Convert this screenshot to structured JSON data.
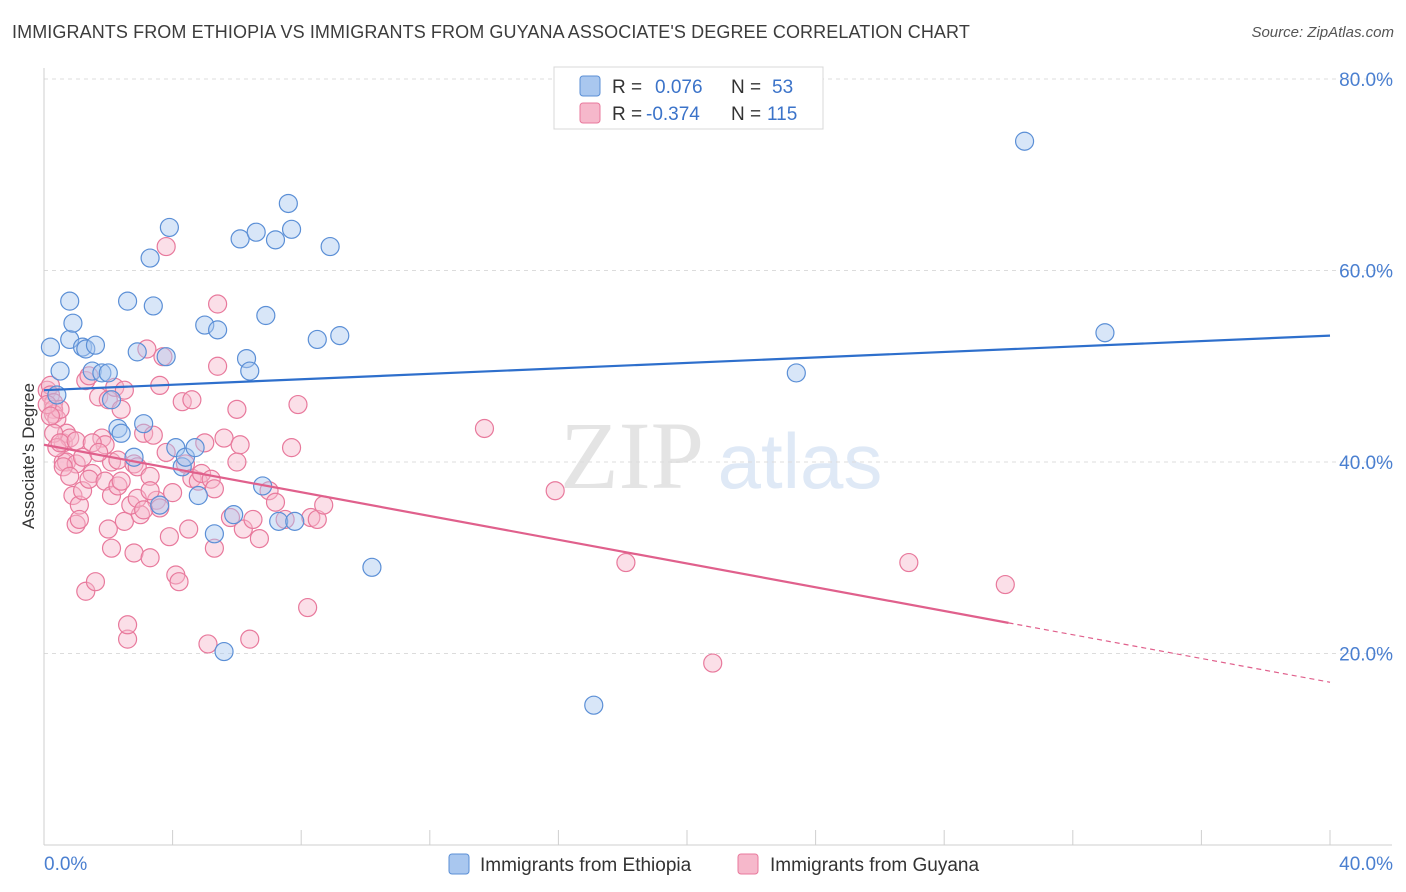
{
  "title": "IMMIGRANTS FROM ETHIOPIA VS IMMIGRANTS FROM GUYANA ASSOCIATE'S DEGREE CORRELATION CHART",
  "source": "Source: ZipAtlas.com",
  "watermark": {
    "zip": "ZIP",
    "atlas": "atlas"
  },
  "colors": {
    "ethiopia_fill": "#a9c7ef",
    "ethiopia_stroke": "#5b8fd6",
    "ethiopia_line": "#2e6fcc",
    "guyana_fill": "#f6b8cb",
    "guyana_stroke": "#e8799c",
    "guyana_line": "#e0608c",
    "axis_text": "#4a7fd0"
  },
  "legend": {
    "rows": [
      {
        "r_label": "R =",
        "r_value": "0.076",
        "n_label": "N =",
        "n_value": "53"
      },
      {
        "r_label": "R =",
        "r_value": "-0.374",
        "n_label": "N =",
        "n_value": "115"
      }
    ]
  },
  "chart_data": {
    "type": "scatter",
    "title": "IMMIGRANTS FROM ETHIOPIA VS IMMIGRANTS FROM GUYANA ASSOCIATE'S DEGREE CORRELATION CHART",
    "xlabel": "",
    "ylabel": "Associate's Degree",
    "xlim": [
      0,
      40
    ],
    "ylim": [
      0,
      80
    ],
    "x_tick_labels": [
      "0.0%",
      "40.0%"
    ],
    "y_ticks": [
      20,
      40,
      60,
      80
    ],
    "y_tick_labels": [
      "20.0%",
      "40.0%",
      "60.0%",
      "80.0%"
    ],
    "grid": true,
    "legend_position": "top-center",
    "series": [
      {
        "name": "Immigrants from Ethiopia",
        "trend": {
          "x": [
            0,
            40
          ],
          "y": [
            47.5,
            53.2
          ],
          "dashed_from": null
        },
        "points": [
          [
            0.2,
            52
          ],
          [
            0.5,
            49.5
          ],
          [
            0.4,
            47
          ],
          [
            0.8,
            52.8
          ],
          [
            0.8,
            56.8
          ],
          [
            0.9,
            54.5
          ],
          [
            1.2,
            52
          ],
          [
            1.3,
            51.8
          ],
          [
            1.5,
            49.5
          ],
          [
            1.6,
            52.2
          ],
          [
            1.8,
            49.3
          ],
          [
            2.0,
            49.3
          ],
          [
            2.1,
            46.5
          ],
          [
            2.3,
            43.5
          ],
          [
            2.4,
            43
          ],
          [
            2.6,
            56.8
          ],
          [
            2.8,
            40.5
          ],
          [
            2.9,
            51.5
          ],
          [
            3.1,
            44
          ],
          [
            3.3,
            61.3
          ],
          [
            3.4,
            56.3
          ],
          [
            3.6,
            35.5
          ],
          [
            3.8,
            51
          ],
          [
            3.9,
            64.5
          ],
          [
            4.1,
            41.5
          ],
          [
            4.3,
            39.5
          ],
          [
            4.4,
            40.5
          ],
          [
            4.7,
            41.5
          ],
          [
            4.8,
            36.5
          ],
          [
            5.0,
            54.3
          ],
          [
            5.3,
            32.5
          ],
          [
            5.4,
            53.8
          ],
          [
            5.6,
            20.2
          ],
          [
            5.9,
            34.5
          ],
          [
            6.1,
            63.3
          ],
          [
            6.3,
            50.8
          ],
          [
            6.4,
            49.5
          ],
          [
            6.6,
            64
          ],
          [
            6.8,
            37.5
          ],
          [
            6.9,
            55.3
          ],
          [
            7.2,
            63.2
          ],
          [
            7.3,
            33.8
          ],
          [
            7.6,
            67
          ],
          [
            7.7,
            64.3
          ],
          [
            7.8,
            33.8
          ],
          [
            8.5,
            52.8
          ],
          [
            8.9,
            62.5
          ],
          [
            9.2,
            53.2
          ],
          [
            10.2,
            29
          ],
          [
            17.1,
            14.6
          ],
          [
            23.4,
            49.3
          ],
          [
            30.5,
            73.5
          ],
          [
            33.0,
            53.5
          ]
        ]
      },
      {
        "name": "Immigrants from Guyana",
        "trend": {
          "x": [
            0,
            40
          ],
          "y": [
            41.8,
            17.0
          ],
          "dashed_from": 30.0
        },
        "points": [
          [
            0.1,
            47.5
          ],
          [
            0.2,
            48
          ],
          [
            0.2,
            47
          ],
          [
            0.3,
            46.2
          ],
          [
            0.3,
            45.5
          ],
          [
            0.3,
            45
          ],
          [
            0.4,
            44.5
          ],
          [
            0.5,
            45.5
          ],
          [
            0.6,
            40
          ],
          [
            0.6,
            42
          ],
          [
            0.7,
            43
          ],
          [
            0.7,
            40
          ],
          [
            0.8,
            42.5
          ],
          [
            0.9,
            36.5
          ],
          [
            1.0,
            33.5
          ],
          [
            1.0,
            39.8
          ],
          [
            1.1,
            35.5
          ],
          [
            1.1,
            34
          ],
          [
            1.2,
            37
          ],
          [
            1.3,
            26.5
          ],
          [
            1.3,
            48.5
          ],
          [
            1.4,
            49
          ],
          [
            1.5,
            38.8
          ],
          [
            1.6,
            27.5
          ],
          [
            1.7,
            46.8
          ],
          [
            1.8,
            42.5
          ],
          [
            1.9,
            41.8
          ],
          [
            2.0,
            46.5
          ],
          [
            2.0,
            33
          ],
          [
            2.1,
            31
          ],
          [
            2.1,
            40
          ],
          [
            2.2,
            47.8
          ],
          [
            2.3,
            40.2
          ],
          [
            2.4,
            45.5
          ],
          [
            2.5,
            33.8
          ],
          [
            2.5,
            47.5
          ],
          [
            2.6,
            21.5
          ],
          [
            2.6,
            23
          ],
          [
            2.8,
            30.5
          ],
          [
            2.8,
            39.8
          ],
          [
            2.9,
            39.5
          ],
          [
            3.0,
            34.5
          ],
          [
            3.1,
            43
          ],
          [
            3.2,
            51.8
          ],
          [
            3.3,
            30
          ],
          [
            3.3,
            38.5
          ],
          [
            3.4,
            42.8
          ],
          [
            3.5,
            36
          ],
          [
            3.6,
            35.2
          ],
          [
            3.6,
            48
          ],
          [
            3.7,
            51
          ],
          [
            3.8,
            62.5
          ],
          [
            3.8,
            41
          ],
          [
            3.9,
            32.2
          ],
          [
            4.0,
            36.8
          ],
          [
            4.1,
            28.2
          ],
          [
            4.2,
            27.5
          ],
          [
            4.3,
            46.3
          ],
          [
            4.4,
            39.8
          ],
          [
            4.5,
            33
          ],
          [
            4.6,
            46.5
          ],
          [
            4.6,
            38.3
          ],
          [
            4.8,
            38
          ],
          [
            4.9,
            38.8
          ],
          [
            5.0,
            42
          ],
          [
            5.1,
            21
          ],
          [
            5.2,
            38.2
          ],
          [
            5.3,
            31
          ],
          [
            5.3,
            37.2
          ],
          [
            5.4,
            56.5
          ],
          [
            5.4,
            50
          ],
          [
            5.6,
            42.5
          ],
          [
            5.8,
            34.2
          ],
          [
            6.0,
            45.5
          ],
          [
            6.0,
            40
          ],
          [
            6.1,
            41.8
          ],
          [
            6.2,
            33
          ],
          [
            6.4,
            21.5
          ],
          [
            6.5,
            34
          ],
          [
            6.7,
            32
          ],
          [
            7.0,
            37
          ],
          [
            7.2,
            35.8
          ],
          [
            7.5,
            34
          ],
          [
            7.7,
            41.5
          ],
          [
            7.9,
            46
          ],
          [
            8.2,
            24.8
          ],
          [
            8.3,
            34.2
          ],
          [
            8.5,
            34
          ],
          [
            8.7,
            35.5
          ],
          [
            13.7,
            43.5
          ],
          [
            15.9,
            37
          ],
          [
            18.1,
            29.5
          ],
          [
            20.8,
            19
          ],
          [
            26.9,
            29.5
          ],
          [
            29.9,
            27.2
          ],
          [
            0.1,
            46
          ],
          [
            0.2,
            44.8
          ],
          [
            0.3,
            43
          ],
          [
            0.4,
            41.5
          ],
          [
            0.5,
            42
          ],
          [
            0.6,
            39.5
          ],
          [
            0.8,
            38.5
          ],
          [
            1.0,
            42.2
          ],
          [
            1.2,
            40.5
          ],
          [
            1.4,
            38.2
          ],
          [
            1.5,
            42
          ],
          [
            1.7,
            41
          ],
          [
            1.9,
            38
          ],
          [
            2.1,
            36.5
          ],
          [
            2.3,
            37.5
          ],
          [
            2.4,
            38
          ],
          [
            2.7,
            35.5
          ],
          [
            2.9,
            36.2
          ],
          [
            3.1,
            35
          ],
          [
            3.3,
            37
          ]
        ]
      }
    ]
  },
  "bottom_legend": {
    "items": [
      {
        "label": "Immigrants from Ethiopia"
      },
      {
        "label": "Immigrants from Guyana"
      }
    ]
  }
}
